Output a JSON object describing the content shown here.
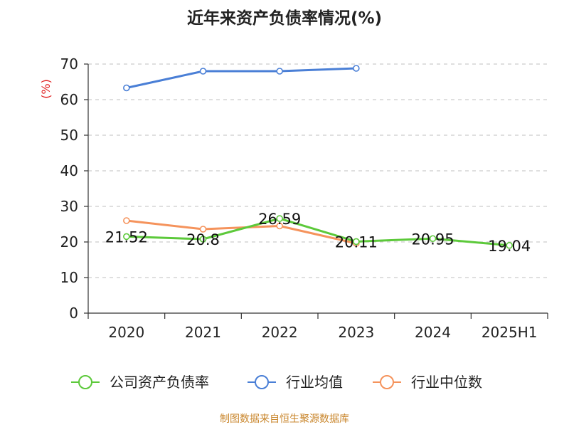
{
  "title": "近年来资产负债率情况(%)",
  "source": "制图数据来自恒生聚源数据库",
  "chart_data": {
    "type": "line",
    "title": "近年来资产负债率情况(%)",
    "ylabel": "(%)",
    "ylim": [
      0,
      70
    ],
    "yticks": [
      0,
      10,
      20,
      30,
      40,
      50,
      60,
      70
    ],
    "categories": [
      "2020",
      "2021",
      "2022",
      "2023",
      "2024",
      "2025H1"
    ],
    "grid": true,
    "legend_position": "bottom",
    "series": [
      {
        "name": "公司资产负债率",
        "color": "#5cc93a",
        "values": [
          21.52,
          20.8,
          26.59,
          20.11,
          20.95,
          19.04
        ],
        "labels": [
          "21.52",
          "20.8",
          "26.59",
          "20.11",
          "20.95",
          "19.04"
        ]
      },
      {
        "name": "行业均值",
        "color": "#4a7fd6",
        "values": [
          63.3,
          68.0,
          68.0,
          68.8,
          null,
          null
        ]
      },
      {
        "name": "行业中位数",
        "color": "#f5935c",
        "values": [
          26.0,
          23.6,
          24.5,
          19.6,
          null,
          null
        ]
      }
    ]
  }
}
